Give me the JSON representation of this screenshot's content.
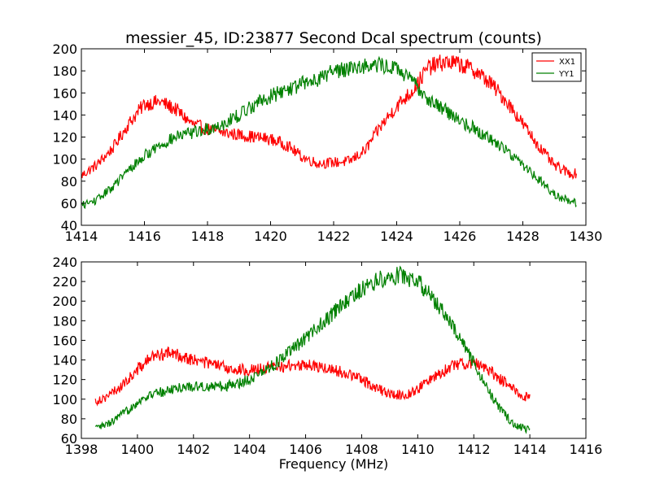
{
  "chart_data": [
    {
      "type": "line",
      "title": "messier_45, ID:23877 Second Dcal spectrum (counts)",
      "xlabel": "",
      "ylabel": "",
      "xlim": [
        1414,
        1430
      ],
      "ylim": [
        40,
        200
      ],
      "xticks": [
        "1414",
        "1416",
        "1418",
        "1420",
        "1422",
        "1424",
        "1426",
        "1428",
        "1430"
      ],
      "yticks": [
        "40",
        "60",
        "80",
        "100",
        "120",
        "140",
        "160",
        "180",
        "200"
      ],
      "legend": {
        "placement": "top-right",
        "entries": [
          "XX1",
          "YY1"
        ]
      },
      "series": [
        {
          "name": "XX1",
          "color": "#ff0000",
          "x": [
            1414.0,
            1414.5,
            1415.0,
            1415.5,
            1416.0,
            1416.5,
            1417.0,
            1417.5,
            1418.0,
            1418.5,
            1419.0,
            1419.5,
            1420.0,
            1420.5,
            1421.0,
            1421.5,
            1422.0,
            1422.5,
            1423.0,
            1423.5,
            1424.0,
            1424.5,
            1425.0,
            1425.5,
            1426.0,
            1426.5,
            1427.0,
            1427.5,
            1428.0,
            1428.5,
            1429.0,
            1429.5,
            1429.7
          ],
          "y": [
            85,
            95,
            110,
            132,
            150,
            152,
            145,
            132,
            127,
            124,
            122,
            120,
            118,
            113,
            102,
            96,
            97,
            98,
            108,
            130,
            148,
            162,
            183,
            188,
            186,
            180,
            168,
            152,
            132,
            112,
            94,
            87,
            87
          ]
        },
        {
          "name": "YY1",
          "color": "#008000",
          "x": [
            1414.0,
            1414.5,
            1415.0,
            1415.5,
            1416.0,
            1416.5,
            1417.0,
            1417.5,
            1418.0,
            1418.5,
            1419.0,
            1419.5,
            1420.0,
            1420.5,
            1421.0,
            1421.5,
            1422.0,
            1422.5,
            1423.0,
            1423.5,
            1424.0,
            1424.5,
            1425.0,
            1425.5,
            1426.0,
            1426.5,
            1427.0,
            1427.5,
            1428.0,
            1428.5,
            1429.0,
            1429.5,
            1429.7
          ],
          "y": [
            58,
            63,
            75,
            90,
            103,
            113,
            120,
            124,
            127,
            132,
            140,
            150,
            157,
            163,
            168,
            173,
            180,
            183,
            185,
            185,
            182,
            170,
            155,
            145,
            135,
            127,
            118,
            108,
            95,
            82,
            68,
            62,
            60
          ]
        }
      ]
    },
    {
      "type": "line",
      "title": "",
      "xlabel": "Frequency (MHz)",
      "ylabel": "",
      "xlim": [
        1398,
        1416
      ],
      "ylim": [
        60,
        240
      ],
      "xticks": [
        "1398",
        "1400",
        "1402",
        "1404",
        "1406",
        "1408",
        "1410",
        "1412",
        "1414",
        "1416"
      ],
      "yticks": [
        "60",
        "80",
        "100",
        "120",
        "140",
        "160",
        "180",
        "200",
        "220",
        "240"
      ],
      "series": [
        {
          "name": "XX1",
          "color": "#ff0000",
          "x": [
            1398.5,
            1399.0,
            1399.5,
            1400.0,
            1400.5,
            1401.0,
            1401.5,
            1402.0,
            1402.5,
            1403.0,
            1403.5,
            1404.0,
            1404.5,
            1405.0,
            1405.5,
            1406.0,
            1406.5,
            1407.0,
            1407.5,
            1408.0,
            1408.5,
            1409.0,
            1409.5,
            1410.0,
            1410.5,
            1411.0,
            1411.5,
            1412.0,
            1412.5,
            1413.0,
            1413.5,
            1414.0
          ],
          "y": [
            98,
            104,
            115,
            130,
            143,
            147,
            145,
            140,
            137,
            133,
            130,
            130,
            131,
            133,
            134,
            135,
            133,
            130,
            126,
            120,
            112,
            105,
            104,
            110,
            122,
            130,
            137,
            137,
            130,
            120,
            108,
            100
          ]
        },
        {
          "name": "YY1",
          "color": "#008000",
          "x": [
            1398.5,
            1399.0,
            1399.5,
            1400.0,
            1400.5,
            1401.0,
            1401.5,
            1402.0,
            1402.5,
            1403.0,
            1403.5,
            1404.0,
            1404.5,
            1405.0,
            1405.5,
            1406.0,
            1406.5,
            1407.0,
            1407.5,
            1408.0,
            1408.5,
            1409.0,
            1409.5,
            1410.0,
            1410.5,
            1411.0,
            1411.5,
            1412.0,
            1412.5,
            1413.0,
            1413.5,
            1414.0
          ],
          "y": [
            70,
            75,
            85,
            97,
            105,
            108,
            112,
            113,
            113,
            113,
            115,
            121,
            128,
            138,
            150,
            162,
            175,
            188,
            200,
            212,
            220,
            226,
            226,
            220,
            205,
            185,
            162,
            137,
            110,
            87,
            73,
            68
          ]
        }
      ]
    }
  ]
}
